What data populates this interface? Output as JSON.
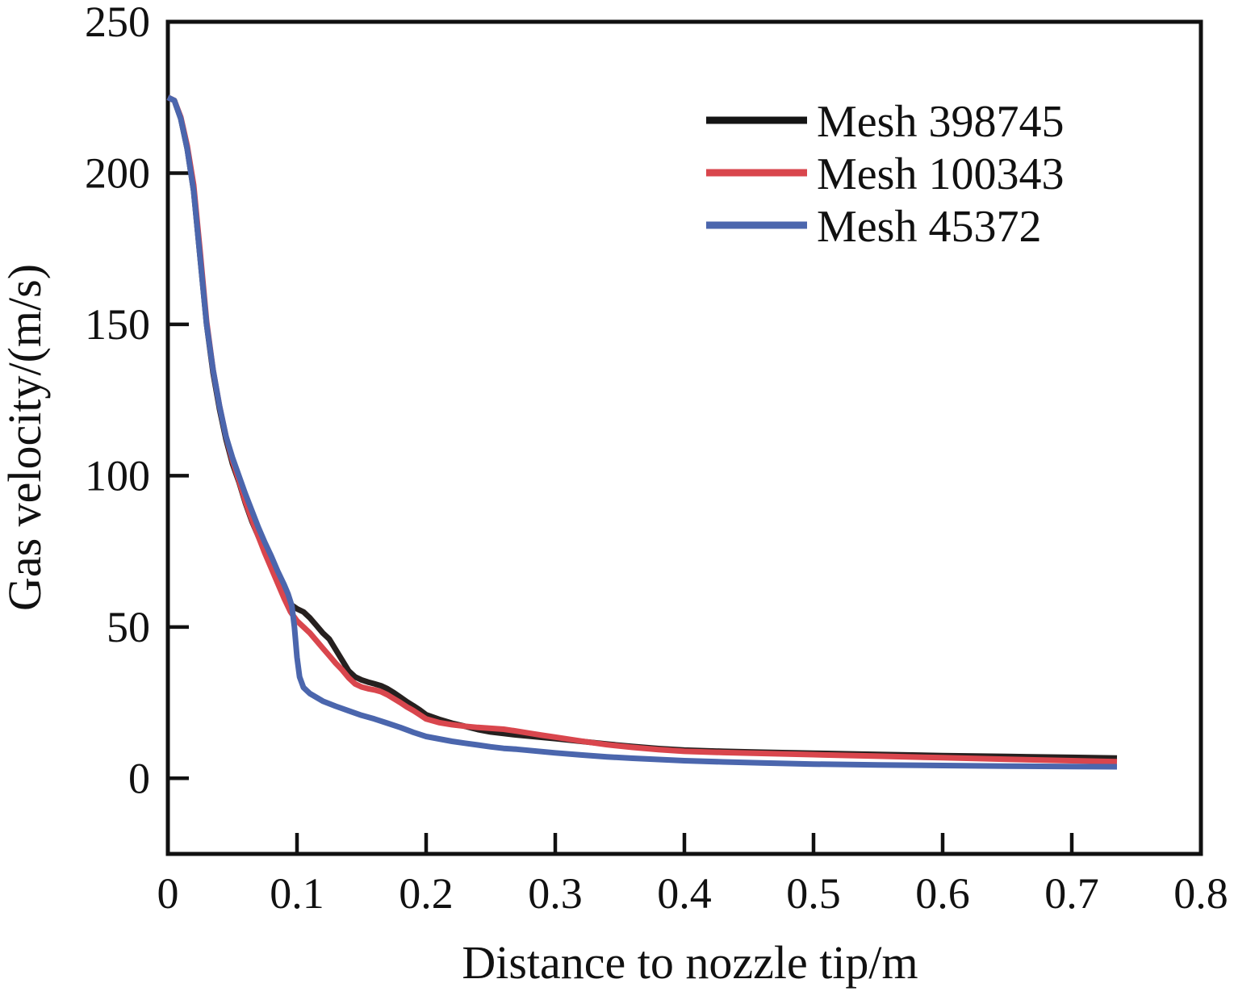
{
  "figure": {
    "background": "#ffffff",
    "axis_color": "#111111"
  },
  "chart_data": {
    "type": "line",
    "title": "",
    "xlabel": "Distance to nozzle tip/m",
    "ylabel": "Gas velocity/(m/s)",
    "xlim": [
      0,
      0.8
    ],
    "ylim": [
      -25,
      250
    ],
    "grid": false,
    "xticks": {
      "values": [
        0,
        0.1,
        0.2,
        0.3,
        0.4,
        0.5,
        0.6,
        0.7,
        0.8
      ],
      "labels": [
        "0",
        "0.1",
        "0.2",
        "0.3",
        "0.4",
        "0.5",
        "0.6",
        "0.7",
        "0.8"
      ]
    },
    "yticks": {
      "values": [
        0,
        50,
        100,
        150,
        200,
        250
      ],
      "labels": [
        "0",
        "50",
        "100",
        "150",
        "200",
        "250"
      ]
    },
    "legend": {
      "position": "upper-right",
      "entries": [
        {
          "label": "Mesh 398745",
          "color": "#141414"
        },
        {
          "label": "Mesh 100343",
          "color": "#d9464d"
        },
        {
          "label": "Mesh 45372",
          "color": "#4b66ad"
        }
      ]
    },
    "series": [
      {
        "name": "Mesh 398745",
        "color": "#26201f",
        "line_width": 7,
        "points": [
          [
            0.0,
            225
          ],
          [
            0.005,
            224
          ],
          [
            0.01,
            218
          ],
          [
            0.015,
            208
          ],
          [
            0.02,
            194
          ],
          [
            0.025,
            172
          ],
          [
            0.03,
            150
          ],
          [
            0.035,
            134
          ],
          [
            0.04,
            122
          ],
          [
            0.045,
            112
          ],
          [
            0.05,
            104
          ],
          [
            0.055,
            98
          ],
          [
            0.06,
            91
          ],
          [
            0.065,
            85
          ],
          [
            0.07,
            80
          ],
          [
            0.075,
            75
          ],
          [
            0.08,
            70.5
          ],
          [
            0.085,
            66
          ],
          [
            0.09,
            61
          ],
          [
            0.095,
            57.5
          ],
          [
            0.1,
            56
          ],
          [
            0.105,
            55
          ],
          [
            0.11,
            53
          ],
          [
            0.115,
            50.5
          ],
          [
            0.12,
            48
          ],
          [
            0.125,
            46
          ],
          [
            0.13,
            42.5
          ],
          [
            0.135,
            39
          ],
          [
            0.14,
            35.5
          ],
          [
            0.145,
            33.5
          ],
          [
            0.15,
            32.5
          ],
          [
            0.155,
            31.8
          ],
          [
            0.16,
            31.2
          ],
          [
            0.165,
            30.6
          ],
          [
            0.17,
            29.6
          ],
          [
            0.175,
            28.3
          ],
          [
            0.18,
            26.8
          ],
          [
            0.185,
            25.3
          ],
          [
            0.19,
            24
          ],
          [
            0.195,
            22.6
          ],
          [
            0.2,
            21
          ],
          [
            0.21,
            19.5
          ],
          [
            0.22,
            18.2
          ],
          [
            0.23,
            17.2
          ],
          [
            0.24,
            16.1
          ],
          [
            0.25,
            15.3
          ],
          [
            0.26,
            14.8
          ],
          [
            0.27,
            14.3
          ],
          [
            0.28,
            13.9
          ],
          [
            0.29,
            13.5
          ],
          [
            0.3,
            13.1
          ],
          [
            0.32,
            12.2
          ],
          [
            0.34,
            11.3
          ],
          [
            0.36,
            10.5
          ],
          [
            0.38,
            9.8
          ],
          [
            0.4,
            9.3
          ],
          [
            0.43,
            8.9
          ],
          [
            0.46,
            8.6
          ],
          [
            0.5,
            8.3
          ],
          [
            0.55,
            7.9
          ],
          [
            0.6,
            7.5
          ],
          [
            0.65,
            7.2
          ],
          [
            0.7,
            6.9
          ],
          [
            0.735,
            6.7
          ]
        ]
      },
      {
        "name": "Mesh 100343",
        "color": "#d9464d",
        "line_width": 7,
        "points": [
          [
            0.0,
            225
          ],
          [
            0.005,
            224
          ],
          [
            0.01,
            218.5
          ],
          [
            0.015,
            209
          ],
          [
            0.02,
            196
          ],
          [
            0.025,
            174
          ],
          [
            0.03,
            151
          ],
          [
            0.035,
            135
          ],
          [
            0.04,
            123
          ],
          [
            0.045,
            113
          ],
          [
            0.05,
            105
          ],
          [
            0.055,
            98.5
          ],
          [
            0.06,
            91.5
          ],
          [
            0.065,
            85.5
          ],
          [
            0.07,
            80
          ],
          [
            0.075,
            74.5
          ],
          [
            0.08,
            69.5
          ],
          [
            0.085,
            64.5
          ],
          [
            0.09,
            59.5
          ],
          [
            0.095,
            55
          ],
          [
            0.1,
            52
          ],
          [
            0.105,
            50
          ],
          [
            0.11,
            48
          ],
          [
            0.115,
            45.5
          ],
          [
            0.12,
            43
          ],
          [
            0.125,
            40.5
          ],
          [
            0.13,
            38
          ],
          [
            0.135,
            35.8
          ],
          [
            0.14,
            33.2
          ],
          [
            0.145,
            31.2
          ],
          [
            0.15,
            30.2
          ],
          [
            0.155,
            29.6
          ],
          [
            0.16,
            29.2
          ],
          [
            0.165,
            28.6
          ],
          [
            0.17,
            27.6
          ],
          [
            0.175,
            26.3
          ],
          [
            0.18,
            25
          ],
          [
            0.185,
            23.6
          ],
          [
            0.19,
            22.4
          ],
          [
            0.195,
            21
          ],
          [
            0.2,
            19.6
          ],
          [
            0.21,
            18.4
          ],
          [
            0.22,
            17.7
          ],
          [
            0.23,
            17.2
          ],
          [
            0.24,
            16.8
          ],
          [
            0.25,
            16.5
          ],
          [
            0.26,
            16.2
          ],
          [
            0.27,
            15.6
          ],
          [
            0.28,
            14.9
          ],
          [
            0.29,
            14.2
          ],
          [
            0.3,
            13.6
          ],
          [
            0.32,
            12.3
          ],
          [
            0.34,
            11.1
          ],
          [
            0.36,
            10.2
          ],
          [
            0.38,
            9.5
          ],
          [
            0.4,
            8.9
          ],
          [
            0.43,
            8.5
          ],
          [
            0.46,
            8.2
          ],
          [
            0.5,
            7.8
          ],
          [
            0.55,
            7.3
          ],
          [
            0.6,
            6.8
          ],
          [
            0.65,
            6.3
          ],
          [
            0.7,
            5.8
          ],
          [
            0.735,
            5.5
          ]
        ]
      },
      {
        "name": "Mesh 45372",
        "color": "#4b66ad",
        "line_width": 7,
        "points": [
          [
            0.0,
            225
          ],
          [
            0.005,
            224
          ],
          [
            0.01,
            218
          ],
          [
            0.015,
            208
          ],
          [
            0.02,
            194
          ],
          [
            0.025,
            172
          ],
          [
            0.03,
            150
          ],
          [
            0.035,
            135
          ],
          [
            0.04,
            123
          ],
          [
            0.045,
            113
          ],
          [
            0.05,
            106
          ],
          [
            0.055,
            100
          ],
          [
            0.06,
            94
          ],
          [
            0.065,
            88.5
          ],
          [
            0.07,
            83
          ],
          [
            0.075,
            78
          ],
          [
            0.08,
            73.5
          ],
          [
            0.085,
            68.5
          ],
          [
            0.09,
            64
          ],
          [
            0.093,
            61
          ],
          [
            0.096,
            57
          ],
          [
            0.098,
            50
          ],
          [
            0.1,
            40
          ],
          [
            0.102,
            33.5
          ],
          [
            0.105,
            30
          ],
          [
            0.11,
            28
          ],
          [
            0.12,
            25.5
          ],
          [
            0.13,
            23.8
          ],
          [
            0.14,
            22.3
          ],
          [
            0.15,
            20.8
          ],
          [
            0.16,
            19.6
          ],
          [
            0.17,
            18.2
          ],
          [
            0.18,
            16.8
          ],
          [
            0.19,
            15.2
          ],
          [
            0.2,
            13.8
          ],
          [
            0.21,
            13.0
          ],
          [
            0.22,
            12.2
          ],
          [
            0.23,
            11.6
          ],
          [
            0.24,
            11.0
          ],
          [
            0.25,
            10.4
          ],
          [
            0.26,
            9.9
          ],
          [
            0.27,
            9.6
          ],
          [
            0.28,
            9.2
          ],
          [
            0.29,
            8.8
          ],
          [
            0.3,
            8.4
          ],
          [
            0.32,
            7.7
          ],
          [
            0.34,
            7.1
          ],
          [
            0.36,
            6.6
          ],
          [
            0.38,
            6.2
          ],
          [
            0.4,
            5.8
          ],
          [
            0.43,
            5.4
          ],
          [
            0.46,
            5.1
          ],
          [
            0.5,
            4.7
          ],
          [
            0.55,
            4.4
          ],
          [
            0.6,
            4.2
          ],
          [
            0.65,
            4.0
          ],
          [
            0.7,
            3.9
          ],
          [
            0.735,
            3.8
          ]
        ]
      }
    ]
  }
}
